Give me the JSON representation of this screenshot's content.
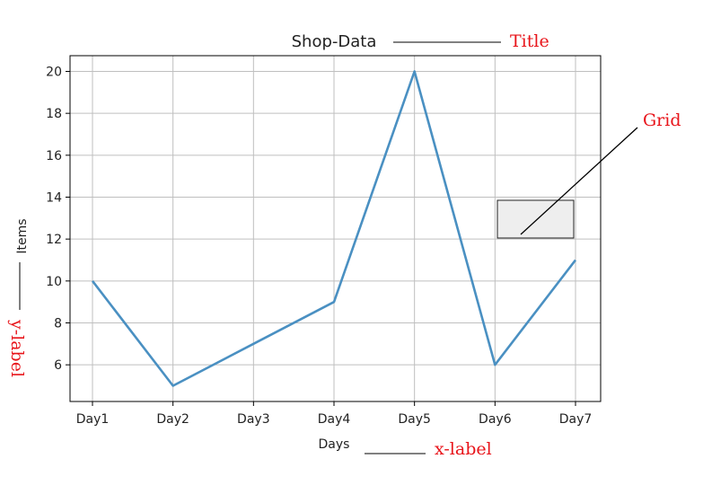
{
  "chart_data": {
    "type": "line",
    "title": "Shop-Data",
    "xlabel": "Days",
    "ylabel": "Items",
    "categories": [
      "Day1",
      "Day2",
      "Day3",
      "Day4",
      "Day5",
      "Day6",
      "Day7"
    ],
    "values": [
      10,
      5,
      7,
      9,
      20,
      6,
      11
    ],
    "ylim": [
      4.25,
      20.75
    ],
    "yticks": [
      6,
      8,
      10,
      12,
      14,
      16,
      18,
      20
    ],
    "grid": true,
    "line_color": "#4a90c2",
    "grid_color": "#bfbfbf"
  },
  "annotations": {
    "title_label": "Title",
    "grid_label": "Grid",
    "xlabel_label": "x-label",
    "ylabel_label": "y-label",
    "annotation_color": "#e8141a"
  }
}
